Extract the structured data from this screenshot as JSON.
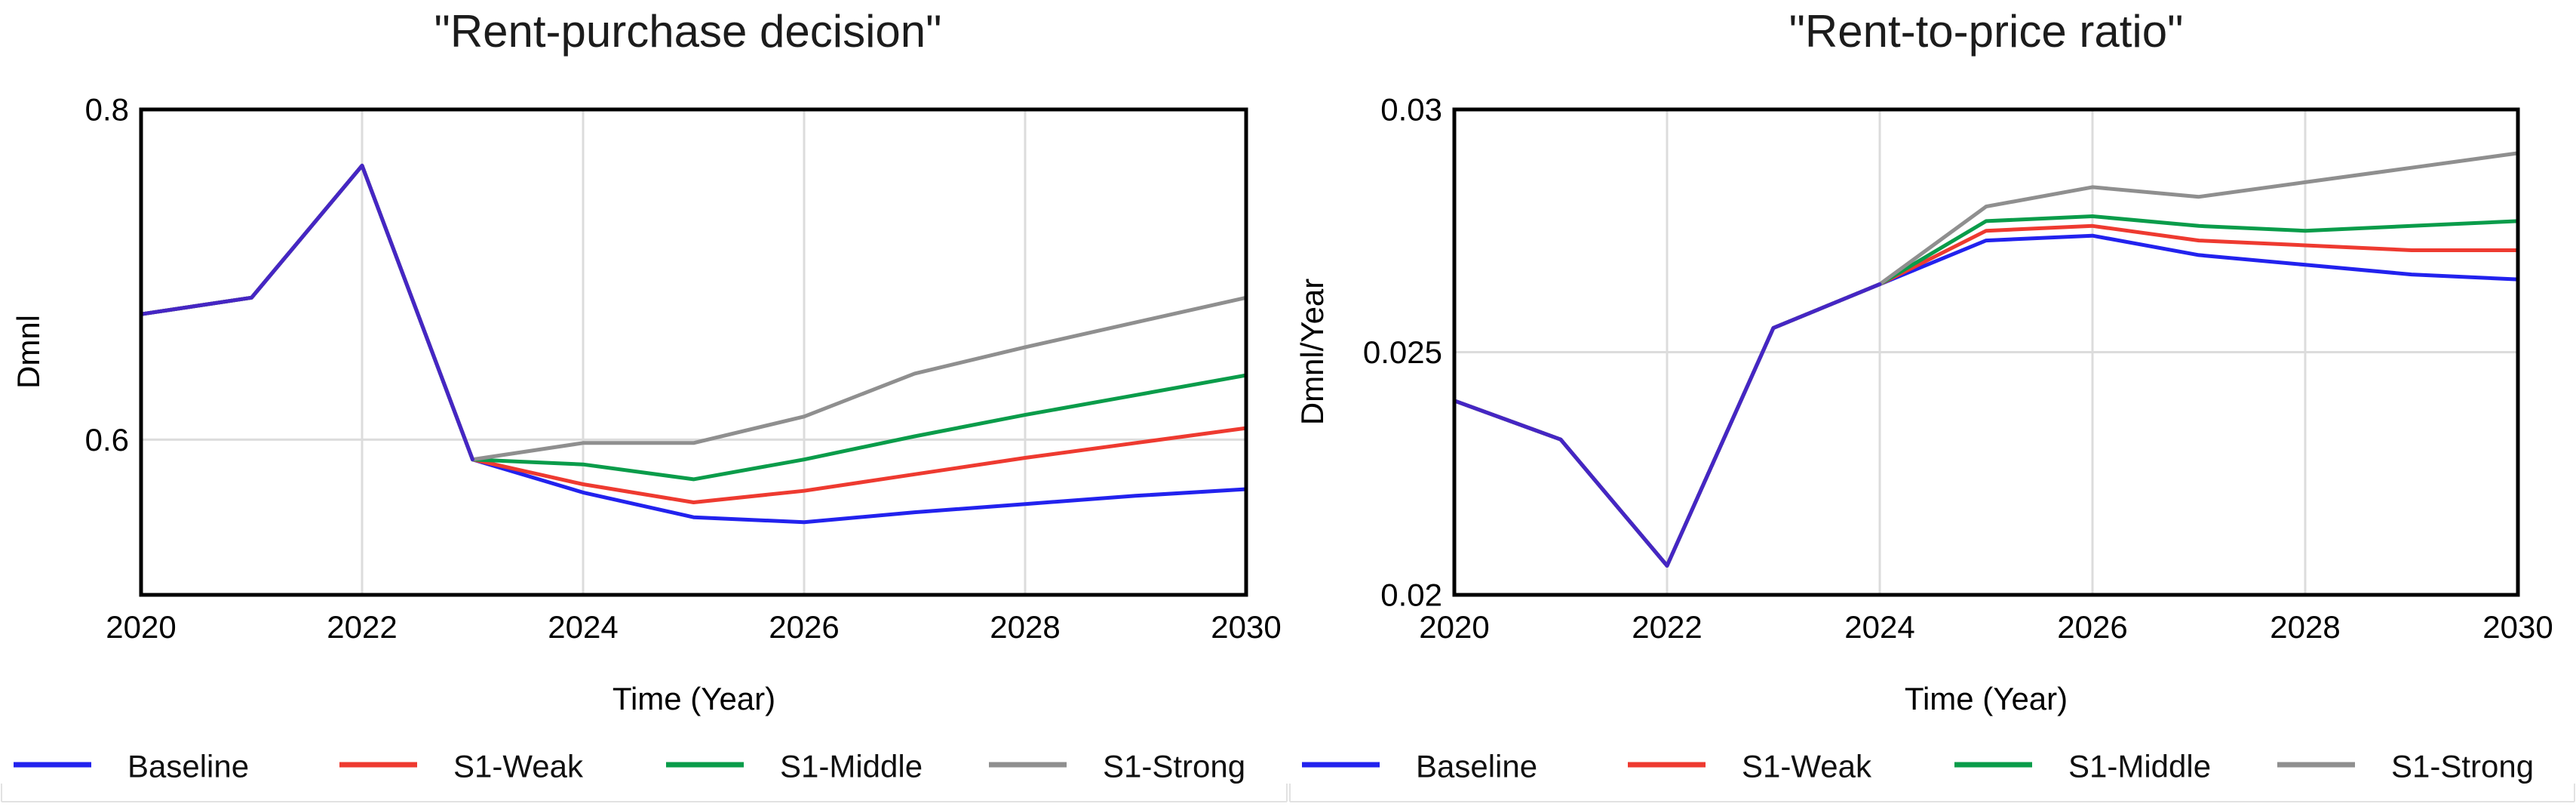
{
  "chart_data": [
    {
      "type": "line",
      "title": "\"Rent-purchase decision\"",
      "xlabel": "Time (Year)",
      "ylabel": "Dmnl",
      "x": [
        2020,
        2021,
        2022,
        2023,
        2024,
        2025,
        2026,
        2027,
        2028,
        2029,
        2030
      ],
      "xlim": [
        2020,
        2030
      ],
      "ylim": [
        0.506,
        0.8
      ],
      "x_ticks": [
        {
          "year": 2020,
          "label": "2020"
        },
        {
          "year": 2022,
          "label": "2022"
        },
        {
          "year": 2024,
          "label": "2024"
        },
        {
          "year": 2026,
          "label": "2026"
        },
        {
          "year": 2028,
          "label": "2028"
        },
        {
          "year": 2030,
          "label": "2030"
        }
      ],
      "y_ticks": [
        {
          "value": 0.8,
          "label": "0.8"
        },
        {
          "value": 0.6,
          "label": "0.6"
        }
      ],
      "grid_x": [
        2022,
        2024,
        2026,
        2028
      ],
      "grid_y": [
        0.6
      ],
      "legend_position": "bottom",
      "overlap_color": "#4526c4",
      "series": [
        {
          "name": "Baseline",
          "color": "#2222ee",
          "values": [
            0.676,
            0.686,
            0.766,
            0.588,
            0.568,
            0.553,
            0.55,
            0.556,
            0.561,
            0.566,
            0.57
          ]
        },
        {
          "name": "S1-Weak",
          "color": "#ee3a30",
          "values": [
            0.676,
            0.686,
            0.766,
            0.588,
            0.573,
            0.562,
            0.569,
            0.579,
            0.589,
            0.598,
            0.607
          ]
        },
        {
          "name": "S1-Middle",
          "color": "#0a9c4a",
          "values": [
            0.676,
            0.686,
            0.766,
            0.588,
            0.585,
            0.576,
            0.588,
            0.602,
            0.615,
            0.627,
            0.639
          ]
        },
        {
          "name": "S1-Strong",
          "color": "#8f8f8f",
          "values": [
            0.676,
            0.686,
            0.766,
            0.588,
            0.598,
            0.598,
            0.614,
            0.64,
            0.656,
            0.671,
            0.686
          ]
        }
      ]
    },
    {
      "type": "line",
      "title": "\"Rent-to-price ratio\"",
      "xlabel": "Time (Year)",
      "ylabel": "Dmnl/Year",
      "x": [
        2020,
        2021,
        2022,
        2023,
        2024,
        2025,
        2026,
        2027,
        2028,
        2029,
        2030
      ],
      "xlim": [
        2020,
        2030
      ],
      "ylim": [
        0.02,
        0.03
      ],
      "x_ticks": [
        {
          "year": 2020,
          "label": "2020"
        },
        {
          "year": 2022,
          "label": "2022"
        },
        {
          "year": 2024,
          "label": "2024"
        },
        {
          "year": 2026,
          "label": "2026"
        },
        {
          "year": 2028,
          "label": "2028"
        },
        {
          "year": 2030,
          "label": "2030"
        }
      ],
      "y_ticks": [
        {
          "value": 0.03,
          "label": "0.03"
        },
        {
          "value": 0.025,
          "label": "0.025"
        },
        {
          "value": 0.02,
          "label": "0.02"
        }
      ],
      "grid_x": [
        2022,
        2024,
        2026,
        2028
      ],
      "grid_y": [
        0.025
      ],
      "legend_position": "bottom",
      "overlap_color": "#4526c4",
      "series": [
        {
          "name": "Baseline",
          "color": "#2222ee",
          "values": [
            0.024,
            0.0232,
            0.0206,
            0.0255,
            0.0264,
            0.0273,
            0.0274,
            0.027,
            0.0268,
            0.0266,
            0.0265
          ]
        },
        {
          "name": "S1-Weak",
          "color": "#ee3a30",
          "values": [
            0.024,
            0.0232,
            0.0206,
            0.0255,
            0.0264,
            0.0275,
            0.0276,
            0.0273,
            0.0272,
            0.0271,
            0.0271
          ]
        },
        {
          "name": "S1-Middle",
          "color": "#0a9c4a",
          "values": [
            0.024,
            0.0232,
            0.0206,
            0.0255,
            0.0264,
            0.0277,
            0.0278,
            0.0276,
            0.0275,
            0.0276,
            0.0277
          ]
        },
        {
          "name": "S1-Strong",
          "color": "#8f8f8f",
          "values": [
            0.024,
            0.0232,
            0.0206,
            0.0255,
            0.0264,
            0.028,
            0.0284,
            0.0282,
            0.0285,
            0.0288,
            0.0291
          ]
        }
      ]
    }
  ]
}
